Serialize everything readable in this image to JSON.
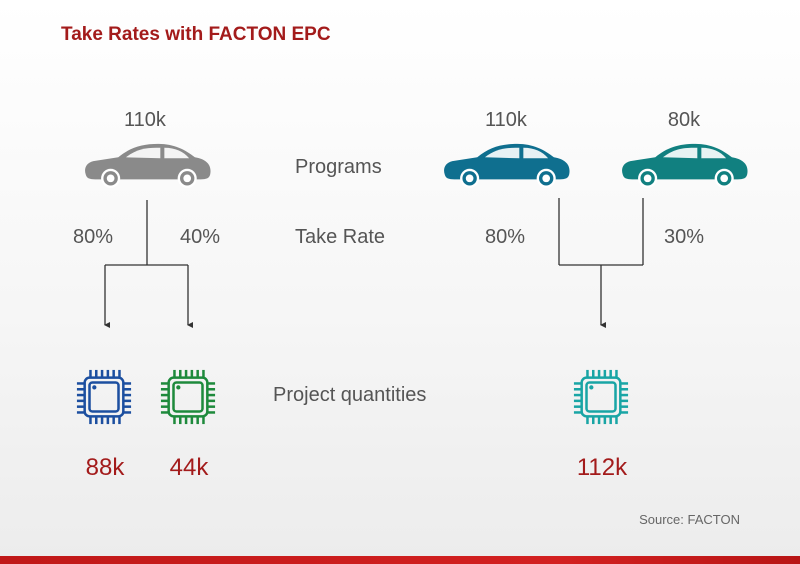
{
  "title": "Take Rates with FACTON EPC",
  "left": {
    "program_value": "110k",
    "take_rates": [
      "80%",
      "40%"
    ],
    "results": [
      "88k",
      "44k"
    ],
    "colors": {
      "car": "#8a8a8a",
      "chip1": "#1c4fa0",
      "chip2": "#1e8a3c"
    }
  },
  "center_labels": {
    "programs": "Programs",
    "take_rate": "Take Rate",
    "project_quantities": "Project quantities"
  },
  "right": {
    "program_values": [
      "110k",
      "80k"
    ],
    "take_rates": [
      "80%",
      "30%"
    ],
    "result": "112k",
    "colors": {
      "car1": "#0f6f8f",
      "car2": "#118080",
      "chip": "#19a5a5"
    }
  },
  "source": "Source: FACTON",
  "accent": "#a31b1b"
}
